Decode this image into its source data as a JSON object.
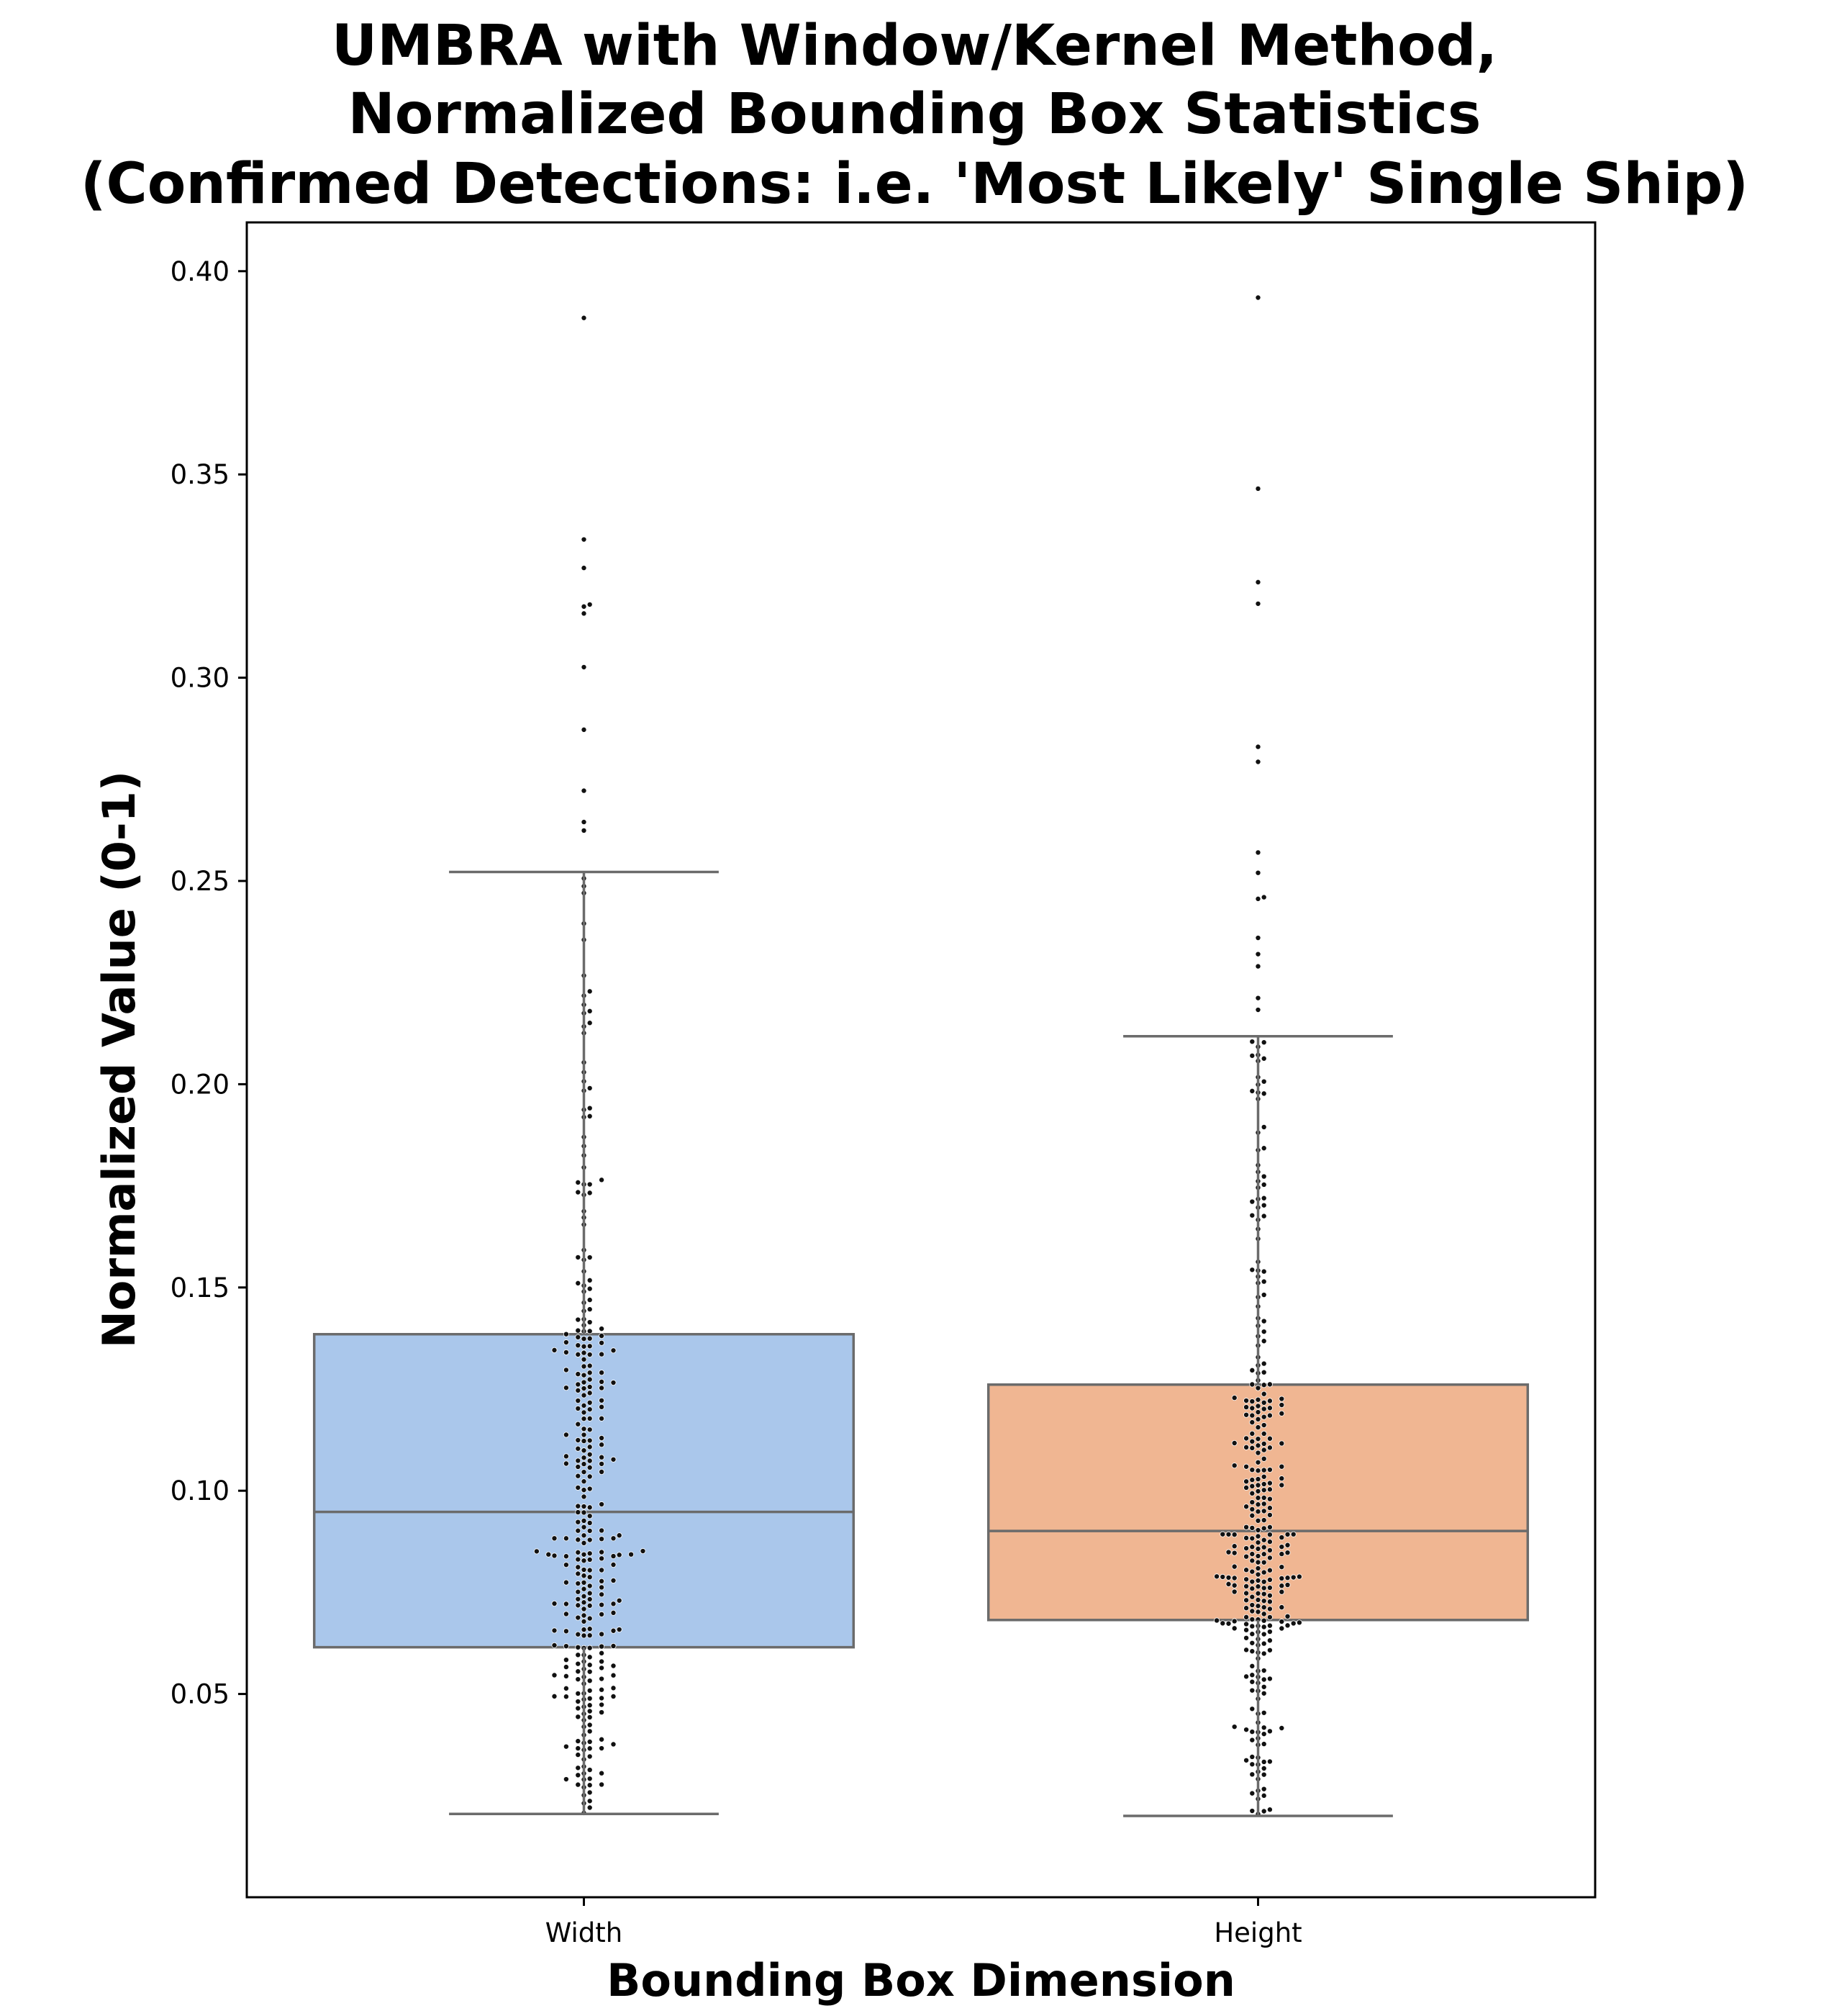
{
  "chart_data": {
    "type": "box",
    "title_lines": [
      "UMBRA with Window/Kernel Method,",
      "Normalized Bounding Box Statistics",
      "(Confirmed Detections: i.e. 'Most Likely' Single Ship)"
    ],
    "xlabel": "Bounding Box Dimension",
    "ylabel": "Normalized Value (0-1)",
    "ylim": [
      0.0,
      0.412
    ],
    "yticks": [
      "0.05",
      "0.10",
      "0.15",
      "0.20",
      "0.25",
      "0.30",
      "0.35",
      "0.40"
    ],
    "grid": false,
    "categories": [
      "Width",
      "Height"
    ],
    "boxes": [
      {
        "category": "Width",
        "whisker_low": 0.0205,
        "q1": 0.0615,
        "median": 0.0948,
        "q3": 0.1385,
        "whisker_high": 0.2522,
        "color": "#aac7eb",
        "outliers": [
          0.2624,
          0.2645,
          0.2722,
          0.2872,
          0.3026,
          0.3158,
          0.3175,
          0.318,
          0.327,
          0.334,
          0.3885
        ]
      },
      {
        "category": "Height",
        "whisker_low": 0.02,
        "q1": 0.0682,
        "median": 0.0901,
        "q3": 0.1261,
        "whisker_high": 0.2118,
        "color": "#f0b692",
        "outliers": [
          0.2183,
          0.2212,
          0.229,
          0.232,
          0.236,
          0.2456,
          0.246,
          0.252,
          0.257,
          0.2793,
          0.283,
          0.3182,
          0.3235,
          0.3465,
          0.3935
        ]
      }
    ],
    "points_note": "swarm of individual detections overlaid on each box"
  }
}
